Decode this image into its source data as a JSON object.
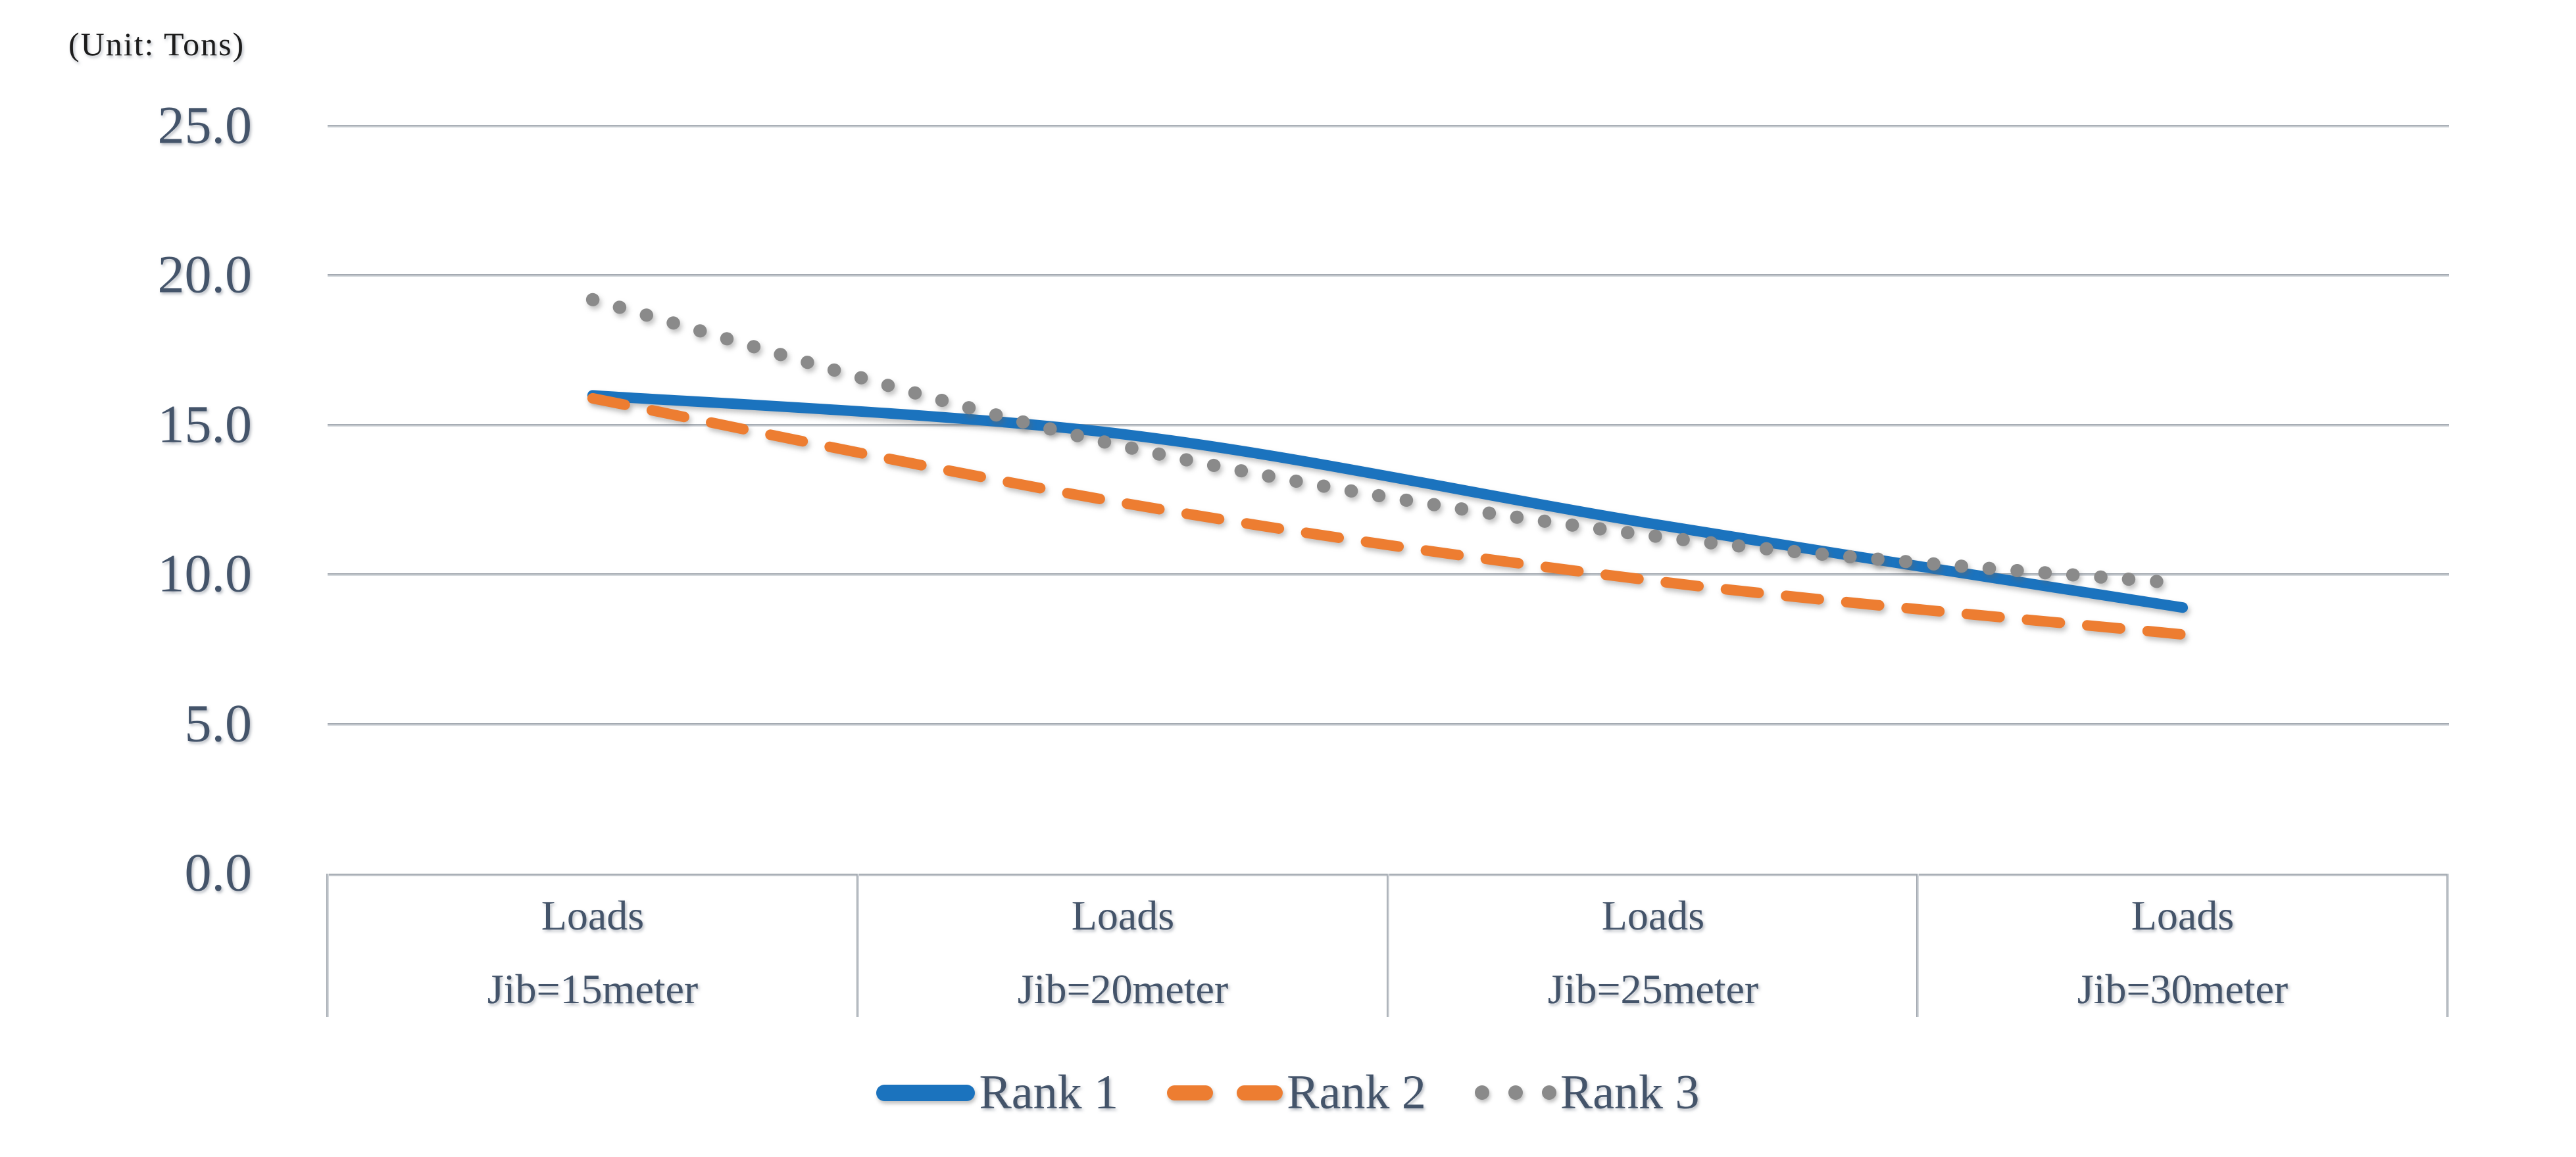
{
  "unit_label": "(Unit: Tons)",
  "y_axis": {
    "ticks": [
      "25.0",
      "20.0",
      "15.0",
      "10.0",
      "5.0",
      "0.0"
    ],
    "min": 0,
    "max": 25,
    "step": 5
  },
  "x_axis": {
    "categories": [
      {
        "line1": "Loads",
        "line2": "Jib=15meter"
      },
      {
        "line1": "Loads",
        "line2": "Jib=20meter"
      },
      {
        "line1": "Loads",
        "line2": "Jib=25meter"
      },
      {
        "line1": "Loads",
        "line2": "Jib=30meter"
      }
    ]
  },
  "legend": {
    "items": [
      {
        "label": "Rank 1",
        "color": "#1B73BE",
        "style": "solid"
      },
      {
        "label": "Rank 2",
        "color": "#ED7D31",
        "style": "dashed"
      },
      {
        "label": "Rank 3",
        "color": "#8A8A8A",
        "style": "dotted"
      }
    ]
  },
  "colors": {
    "tick_text": "#44546A",
    "gridline": "#C7CBD0",
    "unit_text": "#1C1C1C"
  },
  "chart_data": {
    "type": "line",
    "title": "",
    "unit": "(Unit: Tons)",
    "categories": [
      "Loads Jib=15meter",
      "Loads Jib=20meter",
      "Loads Jib=25meter",
      "Loads Jib=30meter"
    ],
    "series": [
      {
        "name": "Rank 1",
        "values": [
          16.0,
          14.7,
          11.7,
          8.9
        ],
        "color": "#1B73BE",
        "line_style": "solid"
      },
      {
        "name": "Rank 2",
        "values": [
          15.9,
          12.4,
          9.8,
          8.0
        ],
        "color": "#ED7D31",
        "line_style": "dashed"
      },
      {
        "name": "Rank 3",
        "values": [
          19.2,
          14.3,
          11.3,
          9.7
        ],
        "color": "#8A8A8A",
        "line_style": "dotted"
      }
    ],
    "ylabel": "Tons",
    "xlabel": "",
    "ylim": [
      0,
      25
    ],
    "grid": true,
    "smooth_lines": true,
    "legend_position": "bottom"
  }
}
